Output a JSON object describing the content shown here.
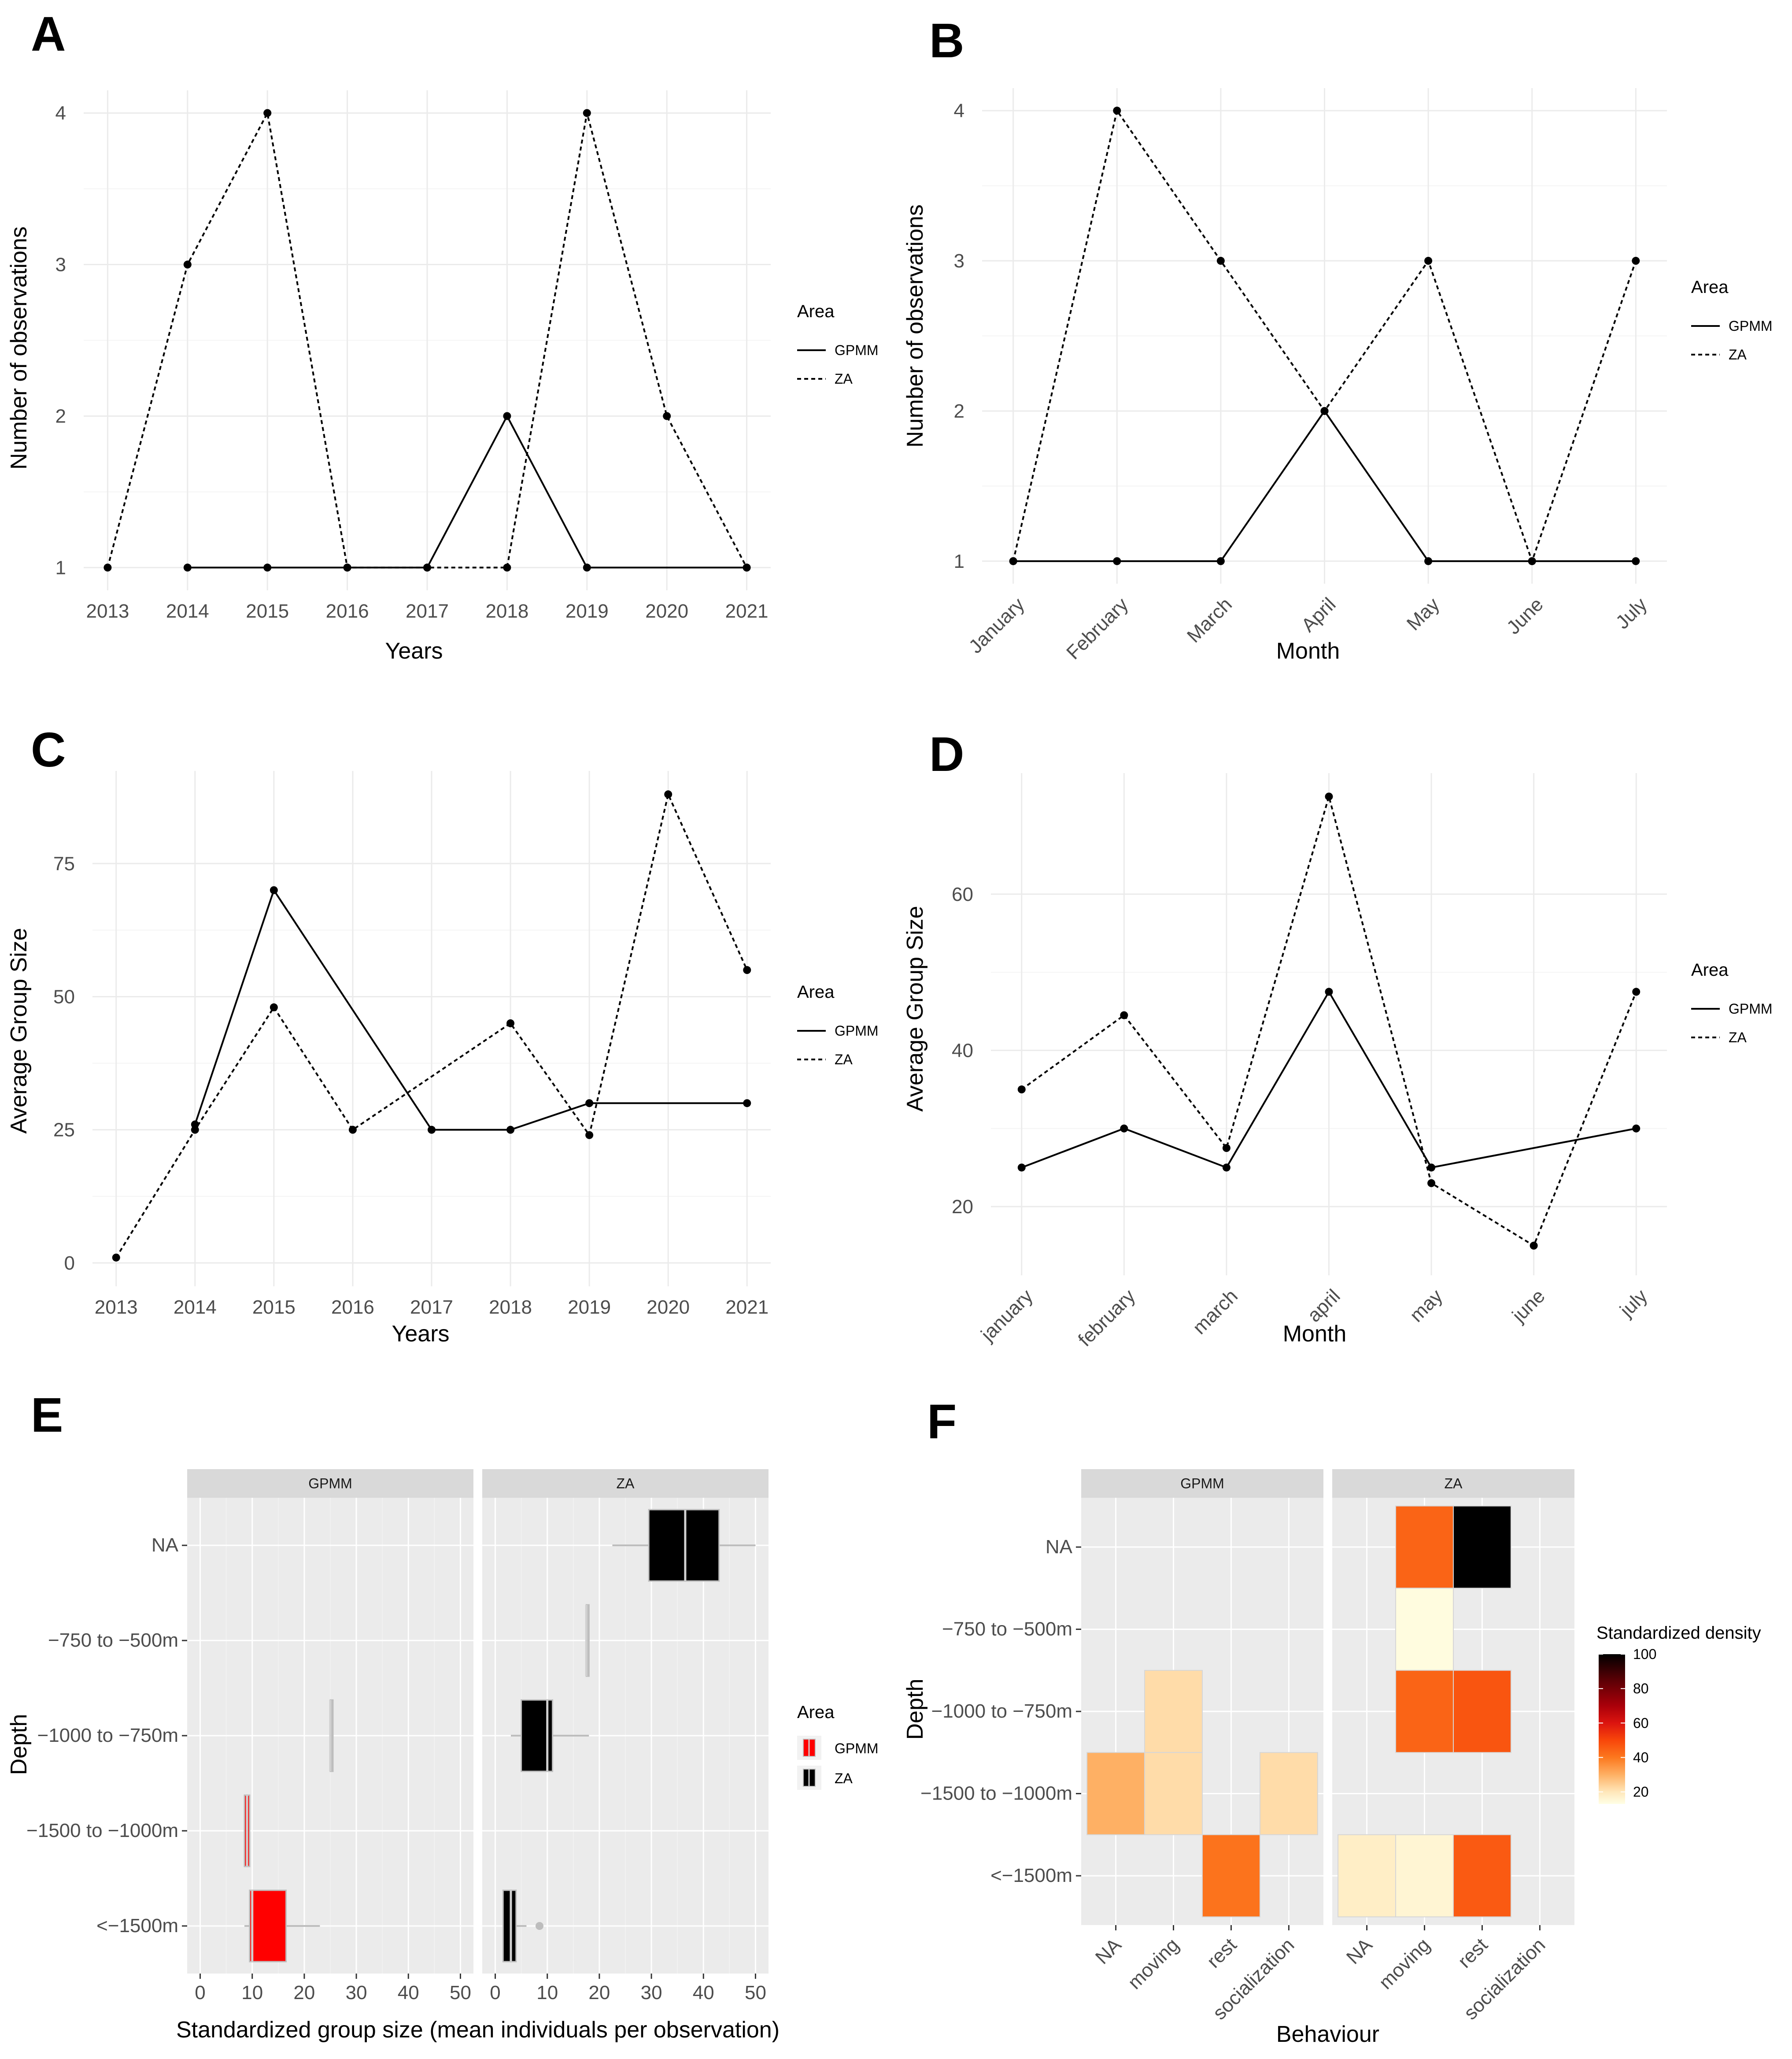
{
  "chart_data": [
    {
      "id": "A",
      "panel_label": "A",
      "type": "line",
      "categories": [
        "2013",
        "2014",
        "2015",
        "2016",
        "2017",
        "2018",
        "2019",
        "2020",
        "2021"
      ],
      "series": [
        {
          "name": "GPMM",
          "style": "solid",
          "x": [
            "2014",
            "2015",
            "2016",
            "2017",
            "2018",
            "2019",
            "2021"
          ],
          "values": [
            1,
            1,
            1,
            1,
            2,
            1,
            1
          ]
        },
        {
          "name": "ZA",
          "style": "dashed",
          "x": [
            "2013",
            "2014",
            "2015",
            "2016",
            "2017",
            "2018",
            "2019",
            "2020",
            "2021"
          ],
          "values": [
            1,
            3,
            4,
            1,
            1,
            1,
            4,
            2,
            1
          ]
        }
      ],
      "xlabel": "Years",
      "ylabel": "Number of observations",
      "yticks": [
        1,
        2,
        3,
        4
      ],
      "ylim": [
        0.85,
        4.15
      ],
      "legend_title": "Area",
      "legend_position": "right",
      "tick_rotation": 0
    },
    {
      "id": "B",
      "panel_label": "B",
      "type": "line",
      "categories": [
        "January",
        "February",
        "March",
        "April",
        "May",
        "June",
        "July"
      ],
      "series": [
        {
          "name": "GPMM",
          "style": "solid",
          "x": [
            "January",
            "February",
            "March",
            "April",
            "May",
            "June",
            "July"
          ],
          "values": [
            1,
            1,
            1,
            2,
            1,
            1,
            1
          ]
        },
        {
          "name": "ZA",
          "style": "dashed",
          "x": [
            "January",
            "February",
            "March",
            "April",
            "May",
            "June",
            "July"
          ],
          "values": [
            1,
            4,
            3,
            2,
            3,
            1,
            3
          ]
        }
      ],
      "xlabel": "Month",
      "ylabel": "Number of observations",
      "yticks": [
        1,
        2,
        3,
        4
      ],
      "ylim": [
        0.85,
        4.15
      ],
      "legend_title": "Area",
      "legend_position": "right",
      "tick_rotation": -45
    },
    {
      "id": "C",
      "panel_label": "C",
      "type": "line",
      "categories": [
        "2013",
        "2014",
        "2015",
        "2016",
        "2017",
        "2018",
        "2019",
        "2020",
        "2021"
      ],
      "series": [
        {
          "name": "GPMM",
          "style": "solid",
          "x": [
            "2014",
            "2015",
            "2017",
            "2018",
            "2019",
            "2021"
          ],
          "values": [
            26,
            70,
            25,
            25,
            30,
            30
          ]
        },
        {
          "name": "ZA",
          "style": "dashed",
          "x": [
            "2013",
            "2014",
            "2015",
            "2016",
            "2018",
            "2019",
            "2020",
            "2021"
          ],
          "values": [
            1,
            25,
            48,
            25,
            45,
            24,
            88,
            55
          ]
        }
      ],
      "xlabel": "Years",
      "ylabel": "Average Group Size",
      "yticks": [
        0,
        25,
        50,
        75
      ],
      "ylim": [
        -4.4,
        92.4
      ],
      "legend_title": "Area",
      "legend_position": "right",
      "tick_rotation": 0
    },
    {
      "id": "D",
      "panel_label": "D",
      "type": "line",
      "categories": [
        "january",
        "february",
        "march",
        "april",
        "may",
        "june",
        "july"
      ],
      "series": [
        {
          "name": "GPMM",
          "style": "solid",
          "x": [
            "january",
            "february",
            "march",
            "april",
            "may",
            "july"
          ],
          "values": [
            25,
            30,
            25,
            47.5,
            25,
            30
          ]
        },
        {
          "name": "ZA",
          "style": "dashed",
          "x": [
            "january",
            "february",
            "march",
            "april",
            "may",
            "june",
            "july"
          ],
          "values": [
            35,
            44.5,
            27.5,
            72.5,
            23,
            15,
            47.5
          ]
        }
      ],
      "xlabel": "Month",
      "ylabel": "Average Group Size",
      "yticks": [
        20,
        40,
        60
      ],
      "ylim": [
        11.2,
        75.5
      ],
      "legend_title": "Area",
      "legend_position": "right",
      "tick_rotation": -45
    },
    {
      "id": "E",
      "panel_label": "E",
      "type": "box",
      "facets": [
        "GPMM",
        "ZA"
      ],
      "categories": [
        "NA",
        "−750 to −500m",
        "−1000 to −750m",
        "−1500 to −1000m",
        "<−1500m"
      ],
      "xlabel": "Standardized group size (mean individuals per observation)",
      "ylabel": "Depth",
      "xticks": [
        0,
        10,
        20,
        30,
        40,
        50
      ],
      "xlim": [
        -2.5,
        52.5
      ],
      "legend_title": "Area",
      "legend_entries": [
        {
          "name": "GPMM",
          "color": "#ff0000"
        },
        {
          "name": "ZA",
          "color": "#000000"
        }
      ],
      "legend_position": "right",
      "boxes": [
        {
          "facet": "GPMM",
          "category": "−1000 to −750m",
          "min": 25,
          "q1": 25,
          "median": 25,
          "q3": 25,
          "max": 25,
          "color": "#bdbdbd"
        },
        {
          "facet": "GPMM",
          "category": "−1500 to −1000m",
          "min": 8.5,
          "q1": 8.5,
          "median": 9,
          "q3": 9.5,
          "max": 9.5,
          "color": "#ff0000"
        },
        {
          "facet": "GPMM",
          "category": "<−1500m",
          "min": 8.5,
          "q1": 9.5,
          "median": 10,
          "q3": 16.5,
          "max": 23,
          "color": "#ff0000"
        },
        {
          "facet": "ZA",
          "category": "NA",
          "min": 22.5,
          "q1": 29.5,
          "median": 36.5,
          "q3": 43,
          "max": 50,
          "color": "#000000"
        },
        {
          "facet": "ZA",
          "category": "−750 to −500m",
          "min": 17.5,
          "q1": 17.5,
          "median": 17.5,
          "q3": 17.5,
          "max": 17.5,
          "color": "#bdbdbd"
        },
        {
          "facet": "ZA",
          "category": "−1000 to −750m",
          "min": 3,
          "q1": 5,
          "median": 10,
          "q3": 11,
          "max": 18,
          "color": "#000000"
        },
        {
          "facet": "ZA",
          "category": "<−1500m",
          "min": 1.5,
          "q1": 1.5,
          "median": 3,
          "q3": 4,
          "max": 6,
          "color": "#000000",
          "outliers": [
            8.5
          ]
        }
      ]
    },
    {
      "id": "F",
      "panel_label": "F",
      "type": "heatmap",
      "facets": [
        "GPMM",
        "ZA"
      ],
      "x_categories": [
        "NA",
        "moving",
        "rest",
        "socialization"
      ],
      "y_categories": [
        "NA",
        "−750 to −500m",
        "−1000 to −750m",
        "−1500 to −1000m",
        "<−1500m"
      ],
      "xlabel": "Behaviour",
      "ylabel": "Depth",
      "colorbar_title": "Standardized density",
      "colorbar_ticks": [
        20,
        40,
        60,
        80,
        100
      ],
      "colorbar_range": [
        13,
        100
      ],
      "colorbar_position": "right",
      "cells": [
        {
          "facet": "GPMM",
          "x": "moving",
          "y": "−1000 to −750m",
          "value": 22
        },
        {
          "facet": "GPMM",
          "x": "NA",
          "y": "−1500 to −1000m",
          "value": 30
        },
        {
          "facet": "GPMM",
          "x": "moving",
          "y": "−1500 to −1000m",
          "value": 22
        },
        {
          "facet": "GPMM",
          "x": "socialization",
          "y": "−1500 to −1000m",
          "value": 22
        },
        {
          "facet": "GPMM",
          "x": "rest",
          "y": "<−1500m",
          "value": 41
        },
        {
          "facet": "ZA",
          "x": "moving",
          "y": "NA",
          "value": 44
        },
        {
          "facet": "ZA",
          "x": "rest",
          "y": "NA",
          "value": 100
        },
        {
          "facet": "ZA",
          "x": "moving",
          "y": "−750 to −500m",
          "value": 14
        },
        {
          "facet": "ZA",
          "x": "moving",
          "y": "−1000 to −750m",
          "value": 44
        },
        {
          "facet": "ZA",
          "x": "rest",
          "y": "−1000 to −750m",
          "value": 47
        },
        {
          "facet": "ZA",
          "x": "NA",
          "y": "<−1500m",
          "value": 18
        },
        {
          "facet": "ZA",
          "x": "moving",
          "y": "<−1500m",
          "value": 16
        },
        {
          "facet": "ZA",
          "x": "rest",
          "y": "<−1500m",
          "value": 46
        }
      ]
    }
  ]
}
